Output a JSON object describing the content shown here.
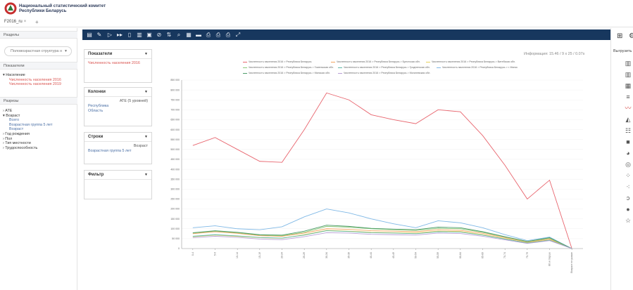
{
  "header": {
    "org_line1": "Национальный статистический комитет",
    "org_line2": "Республики Беларусь"
  },
  "tabs": [
    {
      "label": "F2016_ru",
      "close": "×"
    }
  ],
  "tab_add": "+",
  "sidebar": {
    "sections_title": "Разделы",
    "dropdown_value": "Половозрастная структура н",
    "indicators_title": "Показатели",
    "indicator_group": "Население",
    "indicators": [
      "Численность населения 2016",
      "Численность населения 2019"
    ],
    "slices_title": "Разрезы",
    "slices": [
      {
        "label": "АТЕ",
        "expanded": false
      },
      {
        "label": "Возраст",
        "expanded": true,
        "children": [
          "Всего",
          "Возрастная группа 5 лет",
          "Возраст"
        ]
      },
      {
        "label": "Год рождения",
        "expanded": false
      },
      {
        "label": "Пол",
        "expanded": false
      },
      {
        "label": "Тип местности",
        "expanded": false
      },
      {
        "label": "Трудоспособность",
        "expanded": false
      }
    ]
  },
  "panels": {
    "indicators": {
      "title": "Показатели",
      "items": [
        "Численность населения 2016"
      ]
    },
    "columns": {
      "title": "Колонки",
      "right": "АТЕ (5 уровней)",
      "items": [
        "Республика",
        "Область"
      ]
    },
    "rows": {
      "title": "Строки",
      "right": "Возраст",
      "items": [
        "Возрастная группа 5 лет"
      ]
    },
    "filter": {
      "title": "Фильтр"
    }
  },
  "toolbar_icons": [
    "table-icon",
    "edit-icon",
    "play-icon",
    "fast-forward-icon",
    "layout-icon",
    "compare-icon",
    "save-icon",
    "hide-icon",
    "sort-icon",
    "search-icon",
    "export-excel-icon",
    "export-csv-icon",
    "print-icon",
    "print-pdf-icon",
    "print-preview-icon",
    "fullscreen-icon"
  ],
  "rightbar": {
    "export_label": "Выгрузить",
    "top_icons": [
      "grid-icon",
      "settings-icon"
    ],
    "chart_icons": [
      "bar-chart-icon",
      "stacked-bar-icon",
      "heatmap-icon",
      "grouped-bar-icon",
      "line-chart-icon",
      "area-chart-icon",
      "scatter-table-icon",
      "treemap-icon",
      "pie-chart-icon",
      "donut-chart-icon",
      "bubble-icon",
      "funnel-icon",
      "dot-icon",
      "radar-icon"
    ]
  },
  "info_text": "Информация: 15.46 / 9 x 25 / 0.07s",
  "chart_data": {
    "type": "line",
    "x": [
      "0-4",
      "5-9",
      "10-14",
      "15-19",
      "20-24",
      "25-29",
      "30-34",
      "35-39",
      "40-44",
      "45-49",
      "50-54",
      "55-59",
      "60-64",
      "65-69",
      "70-74",
      "75-79",
      "80 и старше",
      "Возраст не указан"
    ],
    "yticks": [
      "0",
      "50 000",
      "100 000",
      "150 000",
      "200 000",
      "250 000",
      "300 000",
      "350 000",
      "400 000",
      "450 000",
      "500 000",
      "550 000",
      "600 000",
      "650 000",
      "700 000",
      "750 000",
      "800 000",
      "850 000"
    ],
    "ylim": [
      0,
      850000
    ],
    "series": [
      {
        "name": "Численность населения 2016 > Республика Беларусь",
        "color": "#e8656e",
        "values": [
          520000,
          560000,
          500000,
          440000,
          435000,
          600000,
          785000,
          750000,
          675000,
          650000,
          630000,
          700000,
          690000,
          570000,
          420000,
          250000,
          345000,
          0
        ]
      },
      {
        "name": "Численность населения 2016 > Республика Беларусь > Брестская обл.",
        "color": "#f2a45f",
        "values": [
          75000,
          85000,
          77000,
          65000,
          62000,
          78000,
          100000,
          97000,
          90000,
          88000,
          85000,
          95000,
          92000,
          77000,
          55000,
          33000,
          48000,
          0
        ]
      },
      {
        "name": "Численность населения 2016 > Республика Беларусь > Витебская обл.",
        "color": "#e6d15a",
        "values": [
          60000,
          68000,
          62000,
          55000,
          52000,
          70000,
          92000,
          88000,
          82000,
          80000,
          78000,
          88000,
          86000,
          70000,
          50000,
          30000,
          44000,
          0
        ]
      },
      {
        "name": "Численность населения 2016 > Республика Беларусь > Гомельская обл.",
        "color": "#8cc97a",
        "values": [
          78000,
          88000,
          80000,
          68000,
          65000,
          82000,
          112000,
          108000,
          100000,
          95000,
          92000,
          102000,
          100000,
          82000,
          58000,
          35000,
          52000,
          0
        ]
      },
      {
        "name": "Численность населения 2016 > Республика Беларусь > Гродненская обл.",
        "color": "#5fb7a8",
        "values": [
          62000,
          70000,
          64000,
          56000,
          53000,
          68000,
          90000,
          86000,
          80000,
          78000,
          75000,
          85000,
          83000,
          68000,
          48000,
          28000,
          42000,
          0
        ]
      },
      {
        "name": "Численность населения 2016 > Республика Беларусь > г. Минск",
        "color": "#7fb8e6",
        "values": [
          105000,
          115000,
          100000,
          95000,
          110000,
          160000,
          200000,
          180000,
          150000,
          125000,
          105000,
          140000,
          130000,
          105000,
          70000,
          40000,
          58000,
          0
        ]
      },
      {
        "name": "Численность населения 2016 > Республика Беларусь > Минская обл.",
        "color": "#4e9c6a",
        "values": [
          80000,
          90000,
          82000,
          70000,
          68000,
          88000,
          118000,
          112000,
          102000,
          98000,
          95000,
          108000,
          105000,
          85000,
          60000,
          36000,
          55000,
          0
        ]
      },
      {
        "name": "Численность населения 2016 > Республика Беларусь > Могилевская обл.",
        "color": "#b89fd6",
        "values": [
          55000,
          62000,
          57000,
          48000,
          45000,
          60000,
          80000,
          78000,
          72000,
          70000,
          68000,
          78000,
          76000,
          62000,
          44000,
          26000,
          40000,
          0
        ]
      }
    ]
  }
}
